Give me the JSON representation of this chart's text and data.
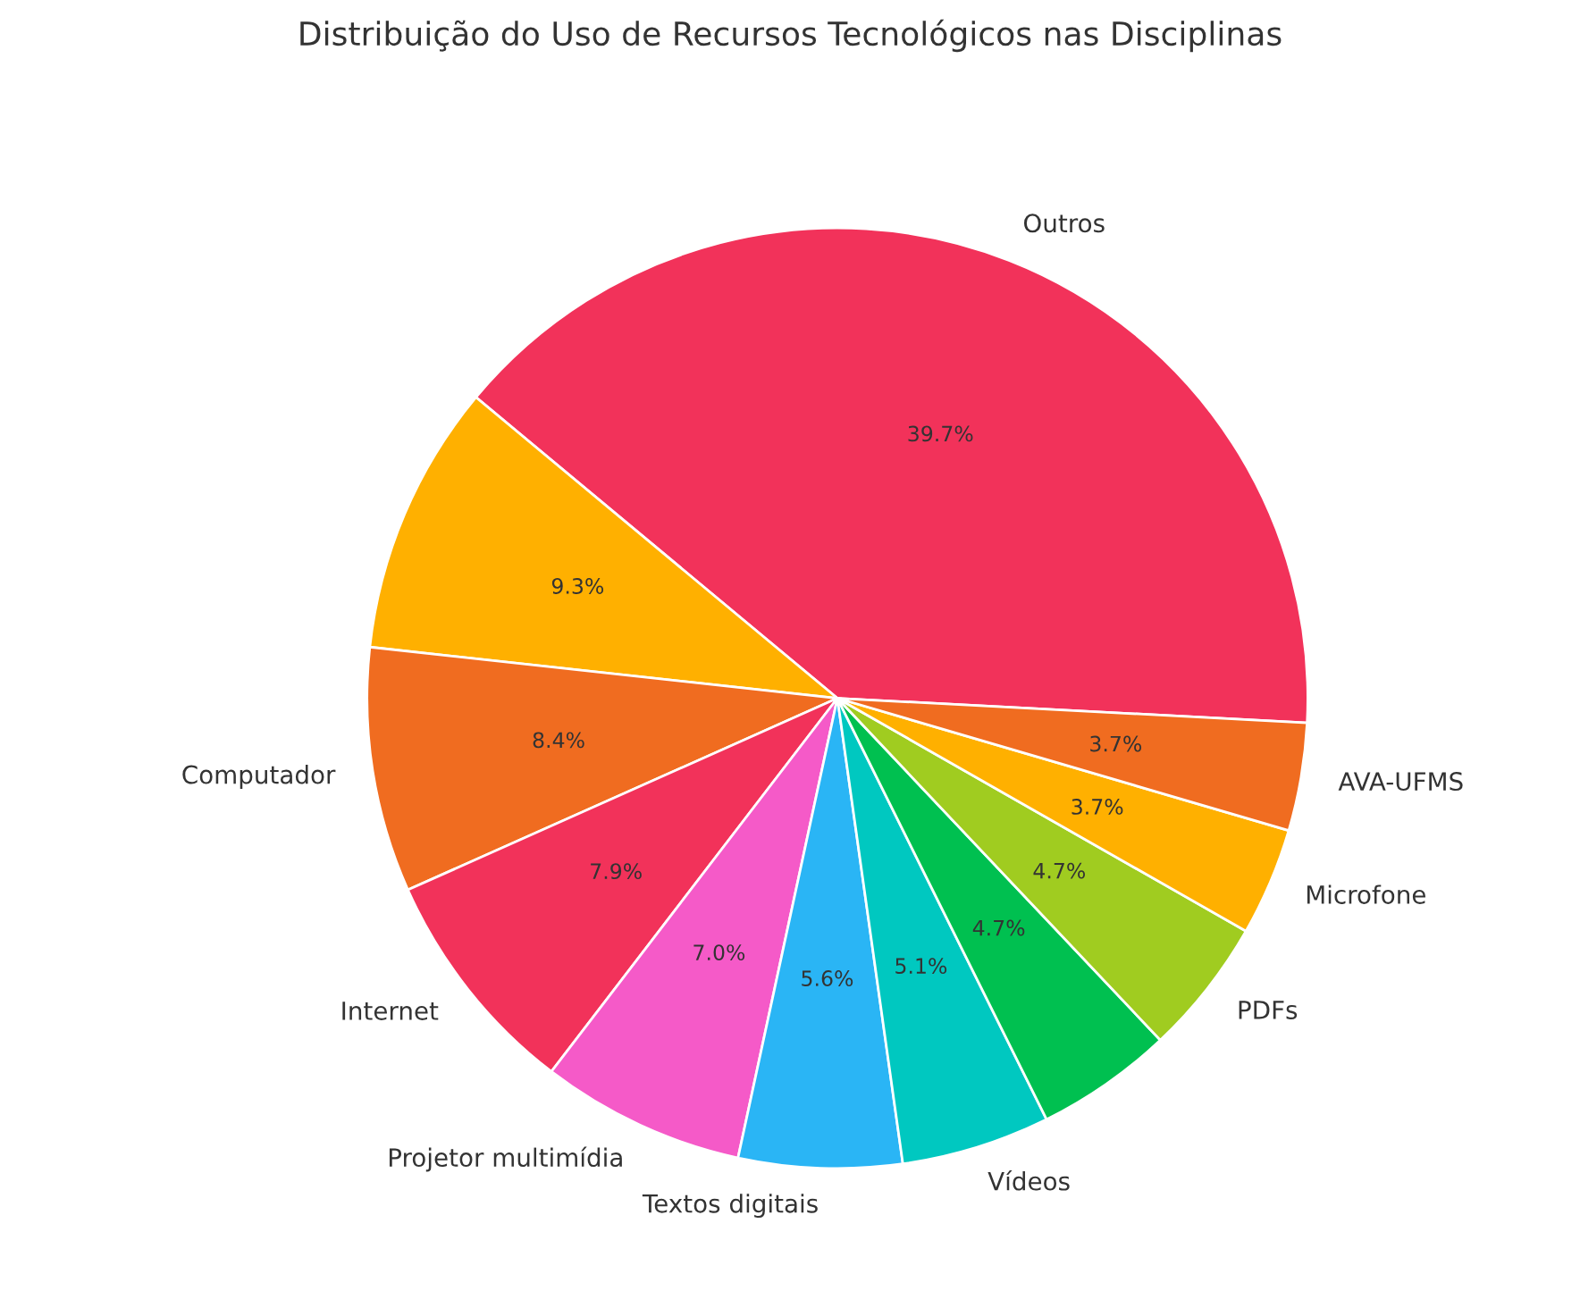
{
  "chart_data": {
    "type": "pie",
    "title": "Distribuição do Uso de Recursos Tecnológicos nas Disciplinas",
    "categories": [
      "Outros",
      null,
      "Computador",
      "Internet",
      "Projetor multimídia",
      "Textos digitais",
      "Vídeos",
      null,
      "PDFs",
      "Microfone",
      "AVA-UFMS"
    ],
    "values": [
      39.7,
      9.3,
      8.4,
      7.9,
      7.0,
      5.6,
      5.1,
      4.7,
      4.7,
      3.7,
      3.7
    ],
    "value_labels": [
      "39.7%",
      "9.3%",
      "8.4%",
      "7.9%",
      "7.0%",
      "5.6%",
      "5.1%",
      "4.7%",
      "4.7%",
      "3.7%",
      "3.7%"
    ],
    "colors": [
      "#f2325a",
      "#ffb000",
      "#f06c20",
      "#f2325a",
      "#f55ac8",
      "#2ab5f5",
      "#00c8c0",
      "#00c050",
      "#a0cc20",
      "#ffb000",
      "#f06c20"
    ]
  }
}
